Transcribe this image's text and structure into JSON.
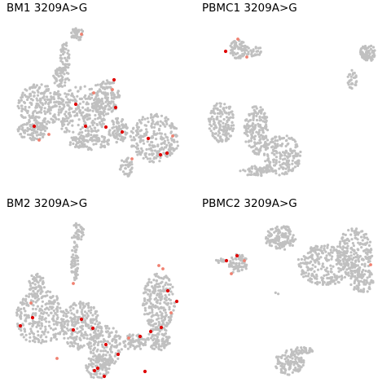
{
  "colors": {
    "background_cells": "#c0c0c0",
    "mutant_strong": "#e00000",
    "mutant_light": "#f08070"
  },
  "chart_data": [
    {
      "type": "scatter",
      "title": "BM1 3209A>G",
      "xlabel": "",
      "ylabel": "",
      "axes": "off",
      "grid": false,
      "series": [
        {
          "values_description": "cells (grey)"
        },
        {
          "values_description": "variant cells (red)"
        }
      ]
    },
    {
      "type": "scatter",
      "title": "PBMC1 3209A>G",
      "xlabel": "",
      "ylabel": "",
      "axes": "off",
      "grid": false
    },
    {
      "type": "scatter",
      "title": "BM2 3209A>G",
      "xlabel": "",
      "ylabel": "",
      "axes": "off",
      "grid": false
    },
    {
      "type": "scatter",
      "title": "PBMC2 3209A>G",
      "xlabel": "",
      "ylabel": "",
      "axes": "off",
      "grid": false
    }
  ]
}
